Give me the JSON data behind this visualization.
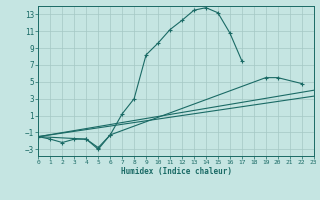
{
  "xlabel": "Humidex (Indice chaleur)",
  "xlim": [
    0,
    23
  ],
  "ylim": [
    -3.8,
    14.0
  ],
  "xticks": [
    0,
    1,
    2,
    3,
    4,
    5,
    6,
    7,
    8,
    9,
    10,
    11,
    12,
    13,
    14,
    15,
    16,
    17,
    18,
    19,
    20,
    21,
    22,
    23
  ],
  "yticks": [
    -3,
    -1,
    1,
    3,
    5,
    7,
    9,
    11,
    13
  ],
  "bg_color": "#c5e5e2",
  "line_color": "#1a6a65",
  "grid_color": "#a5c8c5",
  "curve1_x": [
    0,
    1,
    2,
    3,
    4,
    5,
    6,
    7,
    8,
    9,
    10,
    11,
    12,
    13,
    14,
    15,
    16,
    17
  ],
  "curve1_y": [
    -1.5,
    -1.8,
    -2.2,
    -1.8,
    -1.8,
    -3.0,
    -1.3,
    1.2,
    3.0,
    8.2,
    9.6,
    11.2,
    12.3,
    13.5,
    13.8,
    13.2,
    10.8,
    7.5
  ],
  "curve2_x": [
    0,
    4,
    5,
    6,
    19,
    20,
    22
  ],
  "curve2_y": [
    -1.5,
    -1.8,
    -2.8,
    -1.3,
    5.5,
    5.5,
    4.8
  ],
  "line3_x": [
    0,
    23
  ],
  "line3_y": [
    -1.5,
    4.0
  ],
  "line4_x": [
    0,
    23
  ],
  "line4_y": [
    -1.5,
    3.3
  ]
}
